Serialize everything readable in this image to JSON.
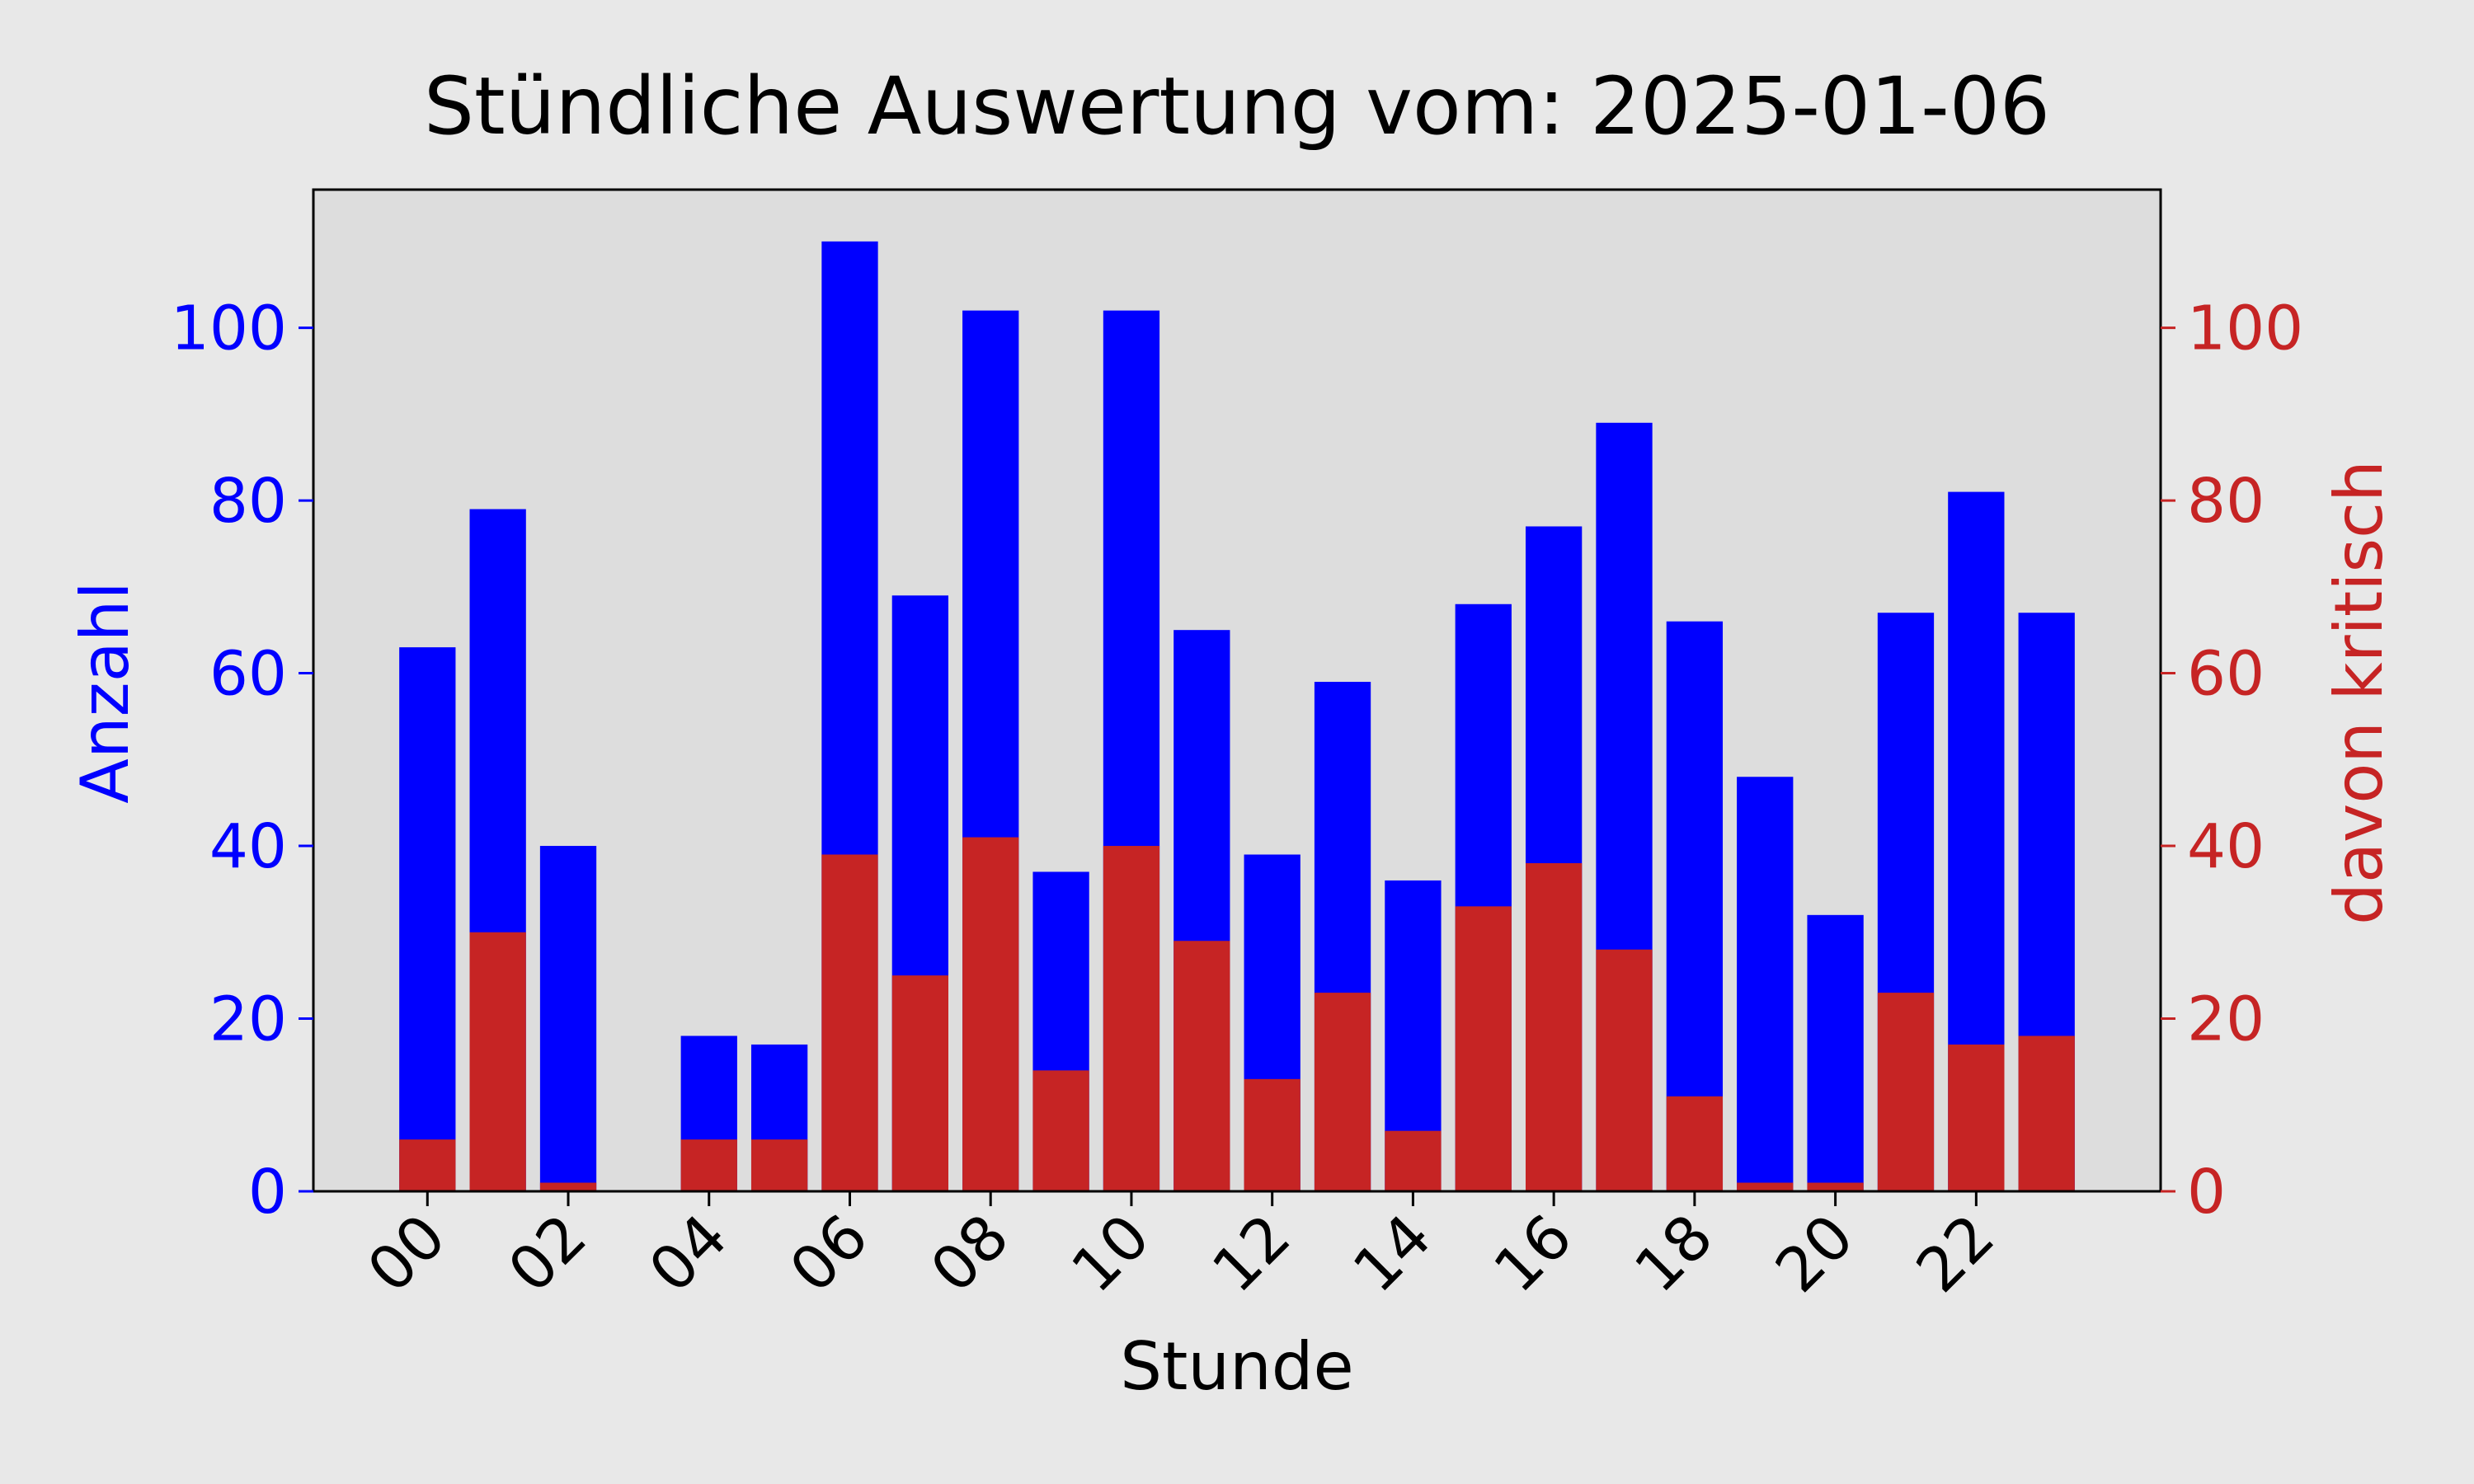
{
  "chart_data": {
    "type": "bar",
    "title": "Stündliche Auswertung vom: 2025-01-06",
    "xlabel": "Stunde",
    "ylabel_left": "Anzahl",
    "ylabel_right": "davon kritisch",
    "hours": [
      0,
      1,
      2,
      3,
      4,
      5,
      6,
      7,
      8,
      9,
      10,
      11,
      12,
      13,
      14,
      15,
      16,
      17,
      18,
      19,
      20,
      21,
      22,
      23
    ],
    "x_tick_labels": [
      "00",
      "02",
      "04",
      "06",
      "08",
      "10",
      "12",
      "14",
      "16",
      "18",
      "20",
      "22"
    ],
    "y_ticks": [
      0,
      20,
      40,
      60,
      80,
      100
    ],
    "ylim": [
      0,
      116
    ],
    "grid": false,
    "series": [
      {
        "axis": "left",
        "values": [
          63,
          79,
          40,
          0,
          18,
          17,
          110,
          69,
          102,
          37,
          102,
          65,
          39,
          59,
          36,
          68,
          77,
          89,
          66,
          48,
          32,
          67,
          81,
          67
        ]
      },
      {
        "axis": "right",
        "values": [
          6,
          30,
          1,
          0,
          6,
          6,
          39,
          25,
          41,
          14,
          40,
          29,
          13,
          23,
          7,
          33,
          38,
          28,
          11,
          1,
          1,
          23,
          17,
          18
        ]
      }
    ],
    "colors": {
      "anzahl": "#0000ff",
      "kritisch": "#c62424",
      "plot_background": "#dddddd",
      "figure_background": "#e8e8e8",
      "left_axis": "#0000ff",
      "right_axis": "#c62424",
      "text": "#000000"
    }
  }
}
